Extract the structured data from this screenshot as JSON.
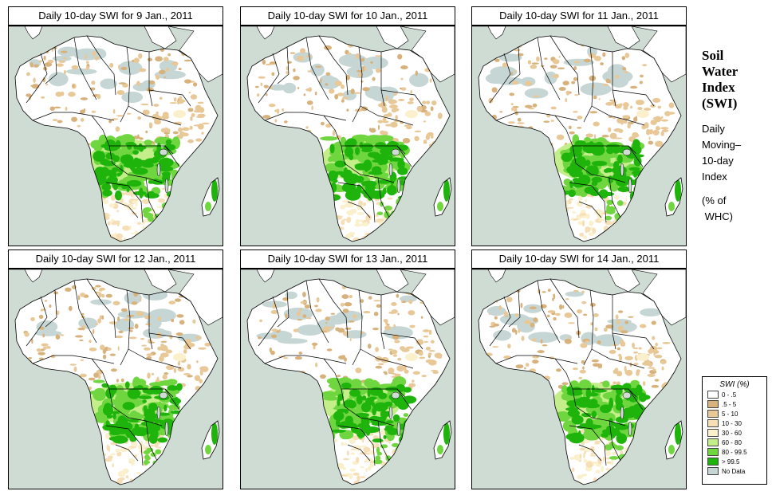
{
  "panels": [
    {
      "title": "Daily 10-day SWI for  9 Jan., 2011",
      "variant": 0
    },
    {
      "title": "Daily 10-day SWI for  10 Jan., 2011",
      "variant": 1
    },
    {
      "title": "Daily 10-day SWI for  11 Jan., 2011",
      "variant": 2
    },
    {
      "title": "Daily 10-day SWI for  12 Jan., 2011",
      "variant": 3
    },
    {
      "title": "Daily 10-day SWI for  13 Jan., 2011",
      "variant": 4
    },
    {
      "title": "Daily 10-day SWI for  14 Jan., 2011",
      "variant": 5
    }
  ],
  "side_title": {
    "line1": "Soil",
    "line2": "Water",
    "line3": "Index",
    "line4": "(SWI)"
  },
  "side_desc": {
    "line1": "Daily",
    "line2": "Moving–",
    "line3": "10-day",
    "line4": "Index"
  },
  "side_unit": {
    "line1": "(% of",
    "line2": " WHC)"
  },
  "legend": {
    "title": "SWI (%)",
    "items": [
      {
        "label": "0 - .5",
        "color": "#ffffff"
      },
      {
        "label": ".5 - 5",
        "color": "#d8b27c"
      },
      {
        "label": "5 - 10",
        "color": "#e9c898"
      },
      {
        "label": "10 - 30",
        "color": "#f6deb6"
      },
      {
        "label": "30 - 60",
        "color": "#fbf0cc"
      },
      {
        "label": "60 - 80",
        "color": "#c4ee8a"
      },
      {
        "label": "80 - 99.5",
        "color": "#6fd640"
      },
      {
        "label": "> 99.5",
        "color": "#1fb40c"
      },
      {
        "label": "No Data",
        "color": "#c6d6d4"
      }
    ]
  },
  "colors": {
    "ocean": "#cfdcd4",
    "land": "#ffffff",
    "border": "#000000"
  }
}
